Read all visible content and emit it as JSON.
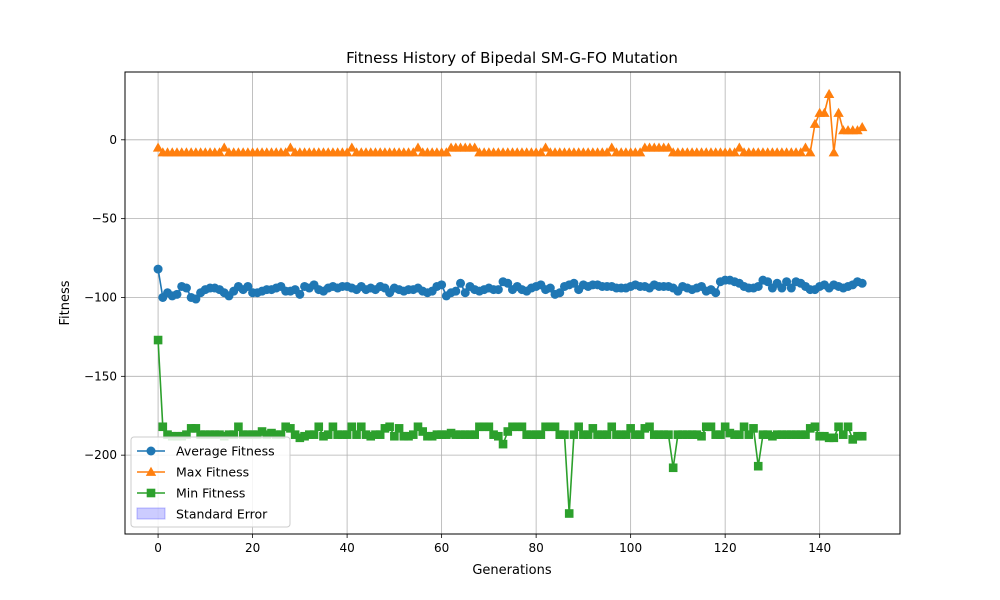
{
  "chart_data": {
    "type": "line",
    "title": "Fitness History of Bipedal SM-G-FO Mutation",
    "xlabel": "Generations",
    "ylabel": "Fitness",
    "xlim": [
      -7,
      157
    ],
    "ylim": [
      -250,
      43
    ],
    "xticks": [
      0,
      20,
      40,
      60,
      80,
      100,
      120,
      140
    ],
    "yticks": [
      0,
      -50,
      -100,
      -150,
      -200
    ],
    "grid": true,
    "legend_position": "lower-left",
    "x": [
      0,
      1,
      2,
      3,
      4,
      5,
      6,
      7,
      8,
      9,
      10,
      11,
      12,
      13,
      14,
      15,
      16,
      17,
      18,
      19,
      20,
      21,
      22,
      23,
      24,
      25,
      26,
      27,
      28,
      29,
      30,
      31,
      32,
      33,
      34,
      35,
      36,
      37,
      38,
      39,
      40,
      41,
      42,
      43,
      44,
      45,
      46,
      47,
      48,
      49,
      50,
      51,
      52,
      53,
      54,
      55,
      56,
      57,
      58,
      59,
      60,
      61,
      62,
      63,
      64,
      65,
      66,
      67,
      68,
      69,
      70,
      71,
      72,
      73,
      74,
      75,
      76,
      77,
      78,
      79,
      80,
      81,
      82,
      83,
      84,
      85,
      86,
      87,
      88,
      89,
      90,
      91,
      92,
      93,
      94,
      95,
      96,
      97,
      98,
      99,
      100,
      101,
      102,
      103,
      104,
      105,
      106,
      107,
      108,
      109,
      110,
      111,
      112,
      113,
      114,
      115,
      116,
      117,
      118,
      119,
      120,
      121,
      122,
      123,
      124,
      125,
      126,
      127,
      128,
      129,
      130,
      131,
      132,
      133,
      134,
      135,
      136,
      137,
      138,
      139,
      140,
      141,
      142,
      143,
      144,
      145,
      146,
      147,
      148,
      149
    ],
    "series": [
      {
        "name": "Average Fitness",
        "color": "#1f77b4",
        "marker": "circle",
        "values": [
          -82,
          -100,
          -97,
          -99,
          -98,
          -93,
          -94,
          -100,
          -101,
          -97,
          -95,
          -94,
          -94,
          -95,
          -97,
          -99,
          -96,
          -93,
          -95,
          -93,
          -97,
          -97,
          -96,
          -95,
          -95,
          -94,
          -93,
          -96,
          -96,
          -95,
          -98,
          -93,
          -94,
          -92,
          -95,
          -96,
          -94,
          -93,
          -94,
          -93,
          -93,
          -94,
          -95,
          -93,
          -95,
          -94,
          -95,
          -93,
          -94,
          -97,
          -94,
          -95,
          -96,
          -95,
          -95,
          -94,
          -96,
          -97,
          -96,
          -93,
          -92,
          -99,
          -97,
          -96,
          -91,
          -97,
          -93,
          -95,
          -96,
          -95,
          -94,
          -95,
          -95,
          -90,
          -91,
          -95,
          -93,
          -95,
          -96,
          -94,
          -93,
          -92,
          -95,
          -94,
          -98,
          -97,
          -93,
          -92,
          -91,
          -95,
          -92,
          -93,
          -92,
          -92,
          -93,
          -93,
          -93,
          -94,
          -94,
          -94,
          -93,
          -92,
          -93,
          -93,
          -94,
          -92,
          -93,
          -93,
          -93,
          -94,
          -96,
          -93,
          -94,
          -95,
          -94,
          -93,
          -96,
          -95,
          -97,
          -90,
          -89,
          -89,
          -90,
          -91,
          -93,
          -94,
          -94,
          -93,
          -89,
          -90,
          -94,
          -91,
          -94,
          -90,
          -94,
          -90,
          -91,
          -93,
          -95,
          -95,
          -93,
          -92,
          -94,
          -92,
          -93,
          -94,
          -93,
          -92,
          -90,
          -91
        ]
      },
      {
        "name": "Max Fitness",
        "color": "#ff7f0e",
        "marker": "triangle",
        "values": [
          -5,
          -8,
          -8,
          -8,
          -8,
          -8,
          -8,
          -8,
          -8,
          -8,
          -8,
          -8,
          -8,
          -8,
          -5,
          -8,
          -8,
          -8,
          -8,
          -8,
          -8,
          -8,
          -8,
          -8,
          -8,
          -8,
          -8,
          -8,
          -5,
          -8,
          -8,
          -8,
          -8,
          -8,
          -8,
          -8,
          -8,
          -8,
          -8,
          -8,
          -8,
          -5,
          -8,
          -8,
          -8,
          -8,
          -8,
          -8,
          -8,
          -8,
          -8,
          -8,
          -8,
          -8,
          -8,
          -5,
          -8,
          -8,
          -8,
          -8,
          -8,
          -8,
          -5,
          -5,
          -5,
          -5,
          -5,
          -5,
          -8,
          -8,
          -8,
          -8,
          -8,
          -8,
          -8,
          -8,
          -8,
          -8,
          -8,
          -8,
          -8,
          -8,
          -5,
          -8,
          -8,
          -8,
          -8,
          -8,
          -8,
          -8,
          -8,
          -8,
          -8,
          -8,
          -8,
          -8,
          -5,
          -8,
          -8,
          -8,
          -8,
          -8,
          -8,
          -5,
          -5,
          -5,
          -5,
          -5,
          -5,
          -8,
          -8,
          -8,
          -8,
          -8,
          -8,
          -8,
          -8,
          -8,
          -8,
          -8,
          -8,
          -8,
          -8,
          -5,
          -8,
          -8,
          -8,
          -8,
          -8,
          -8,
          -8,
          -8,
          -8,
          -8,
          -8,
          -8,
          -8,
          -5,
          -8,
          10,
          17,
          17,
          29,
          -8,
          17,
          6,
          6,
          6,
          6,
          8
        ]
      },
      {
        "name": "Min Fitness",
        "color": "#2ca02c",
        "marker": "square",
        "values": [
          -127,
          -182,
          -187,
          -188,
          -188,
          -188,
          -187,
          -183,
          -183,
          -187,
          -187,
          -187,
          -187,
          -187,
          -188,
          -187,
          -187,
          -182,
          -187,
          -187,
          -187,
          -187,
          -185,
          -187,
          -186,
          -187,
          -187,
          -182,
          -183,
          -187,
          -189,
          -188,
          -187,
          -187,
          -182,
          -188,
          -187,
          -182,
          -187,
          -187,
          -187,
          -182,
          -187,
          -182,
          -187,
          -188,
          -187,
          -187,
          -183,
          -182,
          -188,
          -183,
          -188,
          -188,
          -187,
          -182,
          -185,
          -188,
          -188,
          -187,
          -187,
          -187,
          -186,
          -187,
          -187,
          -187,
          -187,
          -187,
          -182,
          -182,
          -182,
          -187,
          -188,
          -193,
          -185,
          -182,
          -182,
          -182,
          -187,
          -187,
          -187,
          -187,
          -182,
          -182,
          -182,
          -187,
          -187,
          -237,
          -187,
          -182,
          -187,
          -187,
          -183,
          -187,
          -187,
          -187,
          -182,
          -187,
          -187,
          -187,
          -183,
          -187,
          -187,
          -183,
          -182,
          -187,
          -187,
          -187,
          -187,
          -208,
          -187,
          -187,
          -187,
          -187,
          -187,
          -188,
          -182,
          -182,
          -187,
          -187,
          -182,
          -186,
          -187,
          -187,
          -182,
          -187,
          -183,
          -207,
          -187,
          -187,
          -188,
          -187,
          -187,
          -187,
          -187,
          -187,
          -187,
          -187,
          -183,
          -182,
          -188,
          -188,
          -189,
          -189,
          -182,
          -187,
          -182,
          -190,
          -188,
          -188
        ]
      },
      {
        "name": "Standard Error",
        "color": "#0000ff",
        "type": "band",
        "value": 1.5
      }
    ]
  }
}
